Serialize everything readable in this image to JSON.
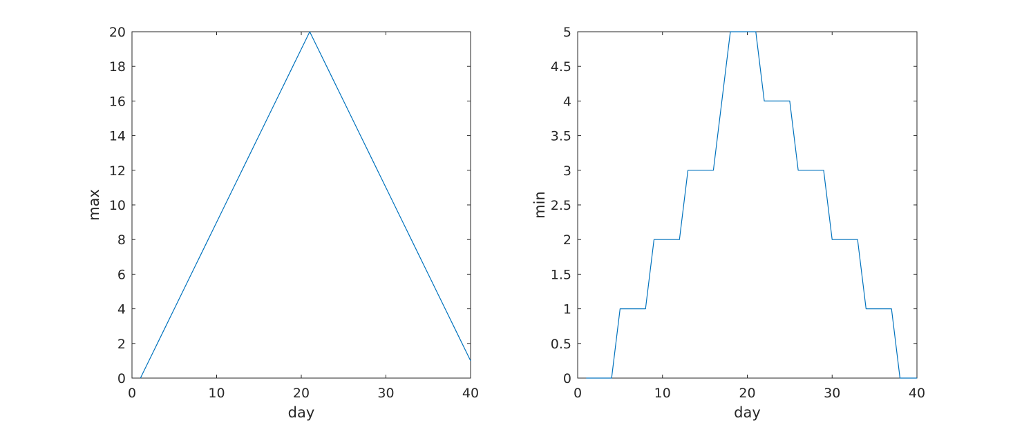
{
  "chart_data": [
    {
      "type": "line",
      "title": "",
      "xlabel": "day",
      "ylabel": "max",
      "xlim": [
        0,
        40
      ],
      "ylim": [
        0,
        20
      ],
      "xticks": [
        0,
        10,
        20,
        30,
        40
      ],
      "yticks": [
        0,
        2,
        4,
        6,
        8,
        10,
        12,
        14,
        16,
        18,
        20
      ],
      "xtick_labels": [
        "0",
        "10",
        "20",
        "30",
        "40"
      ],
      "ytick_labels": [
        "0",
        "2",
        "4",
        "6",
        "8",
        "10",
        "12",
        "14",
        "16",
        "18",
        "20"
      ],
      "grid": false,
      "color": "#0072BD",
      "series": [
        {
          "x": [
            1,
            2,
            3,
            4,
            5,
            6,
            7,
            8,
            9,
            10,
            11,
            12,
            13,
            14,
            15,
            16,
            17,
            18,
            19,
            20,
            21,
            22,
            23,
            24,
            25,
            26,
            27,
            28,
            29,
            30,
            31,
            32,
            33,
            34,
            35,
            36,
            37,
            38,
            39,
            40
          ],
          "values": [
            0,
            1,
            2,
            3,
            4,
            5,
            6,
            7,
            8,
            9,
            10,
            11,
            12,
            13,
            14,
            15,
            16,
            17,
            18,
            19,
            20,
            19,
            18,
            17,
            16,
            15,
            14,
            13,
            12,
            11,
            10,
            9,
            8,
            7,
            6,
            5,
            4,
            3,
            2,
            1
          ]
        }
      ]
    },
    {
      "type": "line",
      "title": "",
      "xlabel": "day",
      "ylabel": "min",
      "xlim": [
        0,
        40
      ],
      "ylim": [
        0,
        5
      ],
      "xticks": [
        0,
        10,
        20,
        30,
        40
      ],
      "yticks": [
        0,
        0.5,
        1,
        1.5,
        2,
        2.5,
        3,
        3.5,
        4,
        4.5,
        5
      ],
      "xtick_labels": [
        "0",
        "10",
        "20",
        "30",
        "40"
      ],
      "ytick_labels": [
        "0",
        "0.5",
        "1",
        "1.5",
        "2",
        "2.5",
        "3",
        "3.5",
        "4",
        "4.5",
        "5"
      ],
      "grid": false,
      "color": "#0072BD",
      "series": [
        {
          "x": [
            1,
            2,
            3,
            4,
            5,
            6,
            7,
            8,
            9,
            10,
            11,
            12,
            13,
            14,
            15,
            16,
            17,
            18,
            19,
            20,
            21,
            22,
            23,
            24,
            25,
            26,
            27,
            28,
            29,
            30,
            31,
            32,
            33,
            34,
            35,
            36,
            37,
            38,
            39,
            40
          ],
          "values": [
            0,
            0,
            0,
            0,
            1,
            1,
            1,
            1,
            2,
            2,
            2,
            2,
            3,
            3,
            3,
            3,
            4,
            5,
            5,
            5,
            5,
            4,
            4,
            4,
            4,
            3,
            3,
            3,
            3,
            2,
            2,
            2,
            2,
            1,
            1,
            1,
            1,
            0,
            0,
            0
          ]
        }
      ]
    }
  ]
}
